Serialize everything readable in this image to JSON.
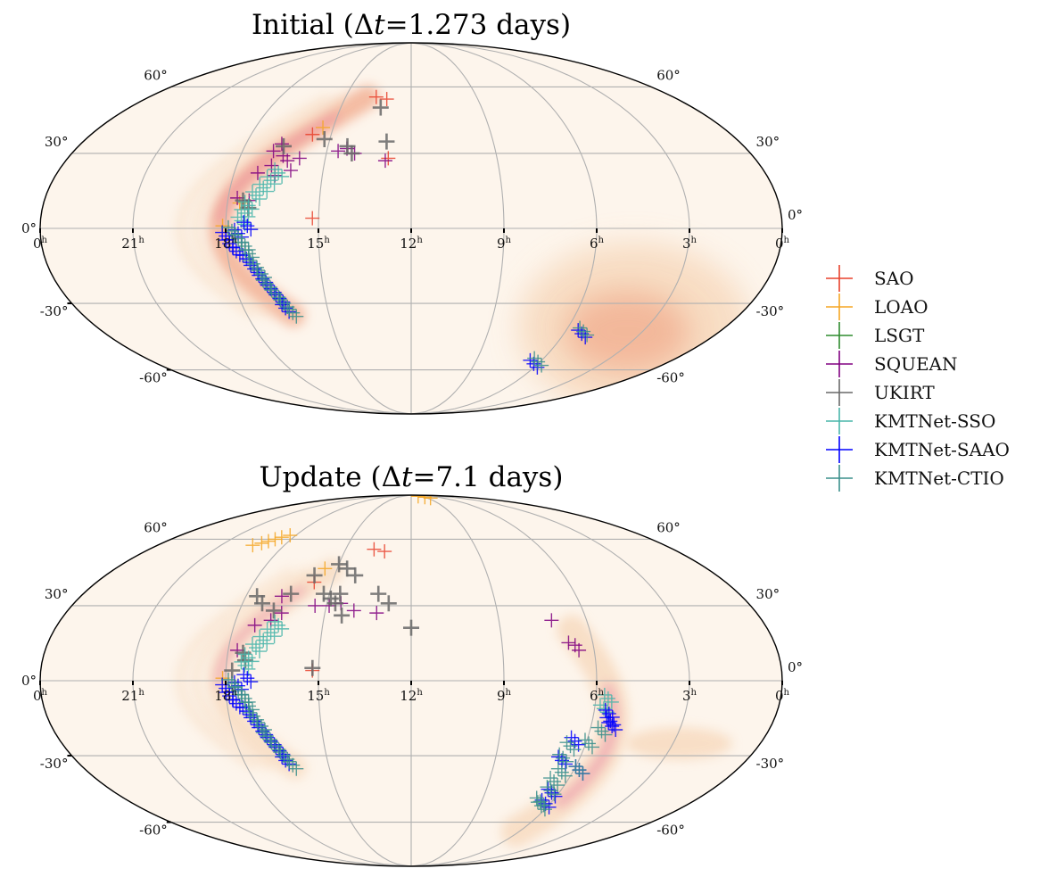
{
  "chart_data": [
    {
      "type": "scatter",
      "projection": "mollweide",
      "title": "Initial (Δt=1.273 days)",
      "title_parts": {
        "prefix": "Initial (",
        "delta": "Δ",
        "t": "t",
        "suffix": "=1.273 days)"
      },
      "x_tick_labels": [
        "0",
        "21",
        "18",
        "15",
        "12",
        "9",
        "6",
        "3",
        "0"
      ],
      "x_tick_ra_hours": [
        24,
        21,
        18,
        15,
        12,
        9,
        6,
        3,
        0
      ],
      "x_tick_unit": "h",
      "y_tick_labels": [
        "60°",
        "30°",
        "0°",
        "-30°",
        "-60°"
      ],
      "y_tick_dec_deg": [
        60,
        30,
        0,
        -30,
        -60
      ],
      "grid": true,
      "ra_direction": "increasing-left",
      "probability_regions": [
        {
          "desc": "northern arc",
          "ra_h": [
            12.5,
            18.2
          ],
          "dec_deg": [
            -35,
            55
          ],
          "intensity": "high"
        },
        {
          "desc": "southern blob",
          "ra_h": [
            1.5,
            6.5
          ],
          "dec_deg": [
            -65,
            -5
          ],
          "intensity": "medium"
        }
      ],
      "series": [
        {
          "name": "SAO",
          "color": "#e8412c",
          "points": [
            [
              13.6,
              55
            ],
            [
              13.1,
              54
            ],
            [
              15.7,
              38
            ],
            [
              15.2,
              4
            ],
            [
              12.8,
              28
            ]
          ]
        },
        {
          "name": "LOAO",
          "color": "#f5a623",
          "points": [
            [
              15.4,
              41
            ],
            [
              17.6,
              10
            ],
            [
              18.1,
              1
            ]
          ]
        },
        {
          "name": "LSGT",
          "color": "#2e8b2e",
          "points": []
        },
        {
          "name": "SQUEAN",
          "color": "#800080",
          "points": [
            [
              16.7,
              34
            ],
            [
              16.9,
              31
            ],
            [
              16.5,
              29
            ],
            [
              16.3,
              27
            ],
            [
              16.8,
              25
            ],
            [
              17.2,
              22
            ],
            [
              16.6,
              21
            ],
            [
              16.1,
              23
            ],
            [
              15.9,
              28
            ],
            [
              14.3,
              32
            ],
            [
              14.6,
              31
            ],
            [
              14.0,
              30
            ],
            [
              12.9,
              27
            ],
            [
              17.7,
              12
            ],
            [
              17.3,
              11
            ]
          ]
        },
        {
          "name": "UKIRT",
          "color": "#696969",
          "points": [
            [
              13.3,
              50
            ],
            [
              15.2,
              36
            ],
            [
              14.3,
              33
            ],
            [
              14.1,
              30
            ],
            [
              12.9,
              35
            ],
            [
              16.6,
              33
            ],
            [
              17.5,
              11
            ],
            [
              17.3,
              8
            ]
          ]
        },
        {
          "name": "KMTNet-SSO",
          "color": "#48b5aa",
          "points": [
            [
              16.5,
              22
            ],
            [
              16.7,
              19
            ],
            [
              16.9,
              16
            ],
            [
              17.1,
              13
            ],
            [
              17.3,
              9
            ],
            [
              17.4,
              6
            ],
            [
              17.5,
              3
            ]
          ]
        },
        {
          "name": "KMTNet-SAAO",
          "color": "#0000ff",
          "points": [
            [
              18.0,
              -3
            ],
            [
              17.9,
              -6
            ],
            [
              17.7,
              -9
            ],
            [
              17.3,
              1
            ],
            [
              17.6,
              -2
            ],
            [
              17.4,
              -12
            ],
            [
              17.2,
              -16
            ],
            [
              17.0,
              -20
            ],
            [
              16.8,
              -24
            ],
            [
              16.6,
              -28
            ],
            [
              16.5,
              -32
            ],
            [
              5.3,
              -43
            ],
            [
              6.2,
              -57
            ]
          ]
        },
        {
          "name": "KMTNet-CTIO",
          "color": "#3a8f8c",
          "points": [
            [
              17.8,
              -1
            ],
            [
              17.6,
              -4
            ],
            [
              17.4,
              -7
            ],
            [
              17.3,
              -10
            ],
            [
              17.2,
              -14
            ],
            [
              17.0,
              -18
            ],
            [
              16.9,
              -22
            ],
            [
              16.7,
              -26
            ],
            [
              16.5,
              -30
            ],
            [
              16.3,
              -34
            ],
            [
              5.3,
              -42
            ],
            [
              6.1,
              -56
            ]
          ]
        }
      ]
    },
    {
      "type": "scatter",
      "projection": "mollweide",
      "title": "Update (Δt=7.1 days)",
      "title_parts": {
        "prefix": "Update (",
        "delta": "Δ",
        "t": "t",
        "suffix": "=7.1 days)"
      },
      "x_tick_labels": [
        "0",
        "21",
        "18",
        "15",
        "12",
        "9",
        "6",
        "3",
        "0"
      ],
      "x_tick_ra_hours": [
        24,
        21,
        18,
        15,
        12,
        9,
        6,
        3,
        0
      ],
      "x_tick_unit": "h",
      "y_tick_labels": [
        "60°",
        "30°",
        "0°",
        "-30°",
        "-60°"
      ],
      "y_tick_dec_deg": [
        60,
        30,
        0,
        -30,
        -60
      ],
      "grid": true,
      "ra_direction": "increasing-left",
      "probability_regions": [
        {
          "desc": "northern arc",
          "ra_h": [
            14.0,
            18.2
          ],
          "dec_deg": [
            -35,
            45
          ],
          "intensity": "medium"
        },
        {
          "desc": "eastern arc",
          "ra_h": [
            4.5,
            7.0
          ],
          "dec_deg": [
            -65,
            20
          ],
          "intensity": "high"
        }
      ],
      "series": [
        {
          "name": "SAO",
          "color": "#e8412c",
          "points": [
            [
              13.7,
              55
            ],
            [
              13.2,
              54
            ],
            [
              15.7,
              40
            ],
            [
              15.2,
              4
            ]
          ]
        },
        {
          "name": "LOAO",
          "color": "#f5a623",
          "points": [
            [
              19.5,
              57
            ],
            [
              19.2,
              58
            ],
            [
              19.0,
              59
            ],
            [
              18.8,
              60
            ],
            [
              18.6,
              61
            ],
            [
              18.3,
              62
            ],
            [
              10.0,
              88
            ],
            [
              9.0,
              87
            ],
            [
              8.5,
              86
            ],
            [
              15.5,
              46
            ],
            [
              18.1,
              1
            ]
          ]
        },
        {
          "name": "LSGT",
          "color": "#2e8b2e",
          "points": []
        },
        {
          "name": "SQUEAN",
          "color": "#800080",
          "points": [
            [
              16.7,
              34
            ],
            [
              16.5,
              27
            ],
            [
              16.8,
              24
            ],
            [
              17.3,
              22
            ],
            [
              15.4,
              30
            ],
            [
              14.9,
              30
            ],
            [
              14.5,
              31
            ],
            [
              14.0,
              28
            ],
            [
              13.2,
              27
            ],
            [
              7.2,
              24
            ],
            [
              6.8,
              15
            ],
            [
              6.6,
              14
            ],
            [
              6.5,
              12
            ],
            [
              17.7,
              12
            ]
          ]
        },
        {
          "name": "UKIRT",
          "color": "#696969",
          "points": [
            [
              15.0,
              48
            ],
            [
              14.6,
              46
            ],
            [
              15.8,
              43
            ],
            [
              14.2,
              43
            ],
            [
              17.6,
              34
            ],
            [
              17.3,
              31
            ],
            [
              16.4,
              35
            ],
            [
              16.8,
              28
            ],
            [
              15.2,
              35
            ],
            [
              14.6,
              35
            ],
            [
              14.9,
              33
            ],
            [
              14.7,
              31
            ],
            [
              14.4,
              26
            ],
            [
              13.2,
              35
            ],
            [
              12.8,
              31
            ],
            [
              12.0,
              21
            ],
            [
              17.5,
              11
            ],
            [
              17.4,
              8
            ],
            [
              17.8,
              4
            ],
            [
              15.2,
              5
            ]
          ]
        },
        {
          "name": "KMTNet-SSO",
          "color": "#48b5aa",
          "points": [
            [
              16.5,
              22
            ],
            [
              16.7,
              19
            ],
            [
              16.9,
              16
            ],
            [
              17.1,
              13
            ],
            [
              17.3,
              9
            ],
            [
              17.4,
              6
            ],
            [
              5.6,
              -7
            ],
            [
              5.7,
              -11
            ]
          ]
        },
        {
          "name": "KMTNet-SAAO",
          "color": "#0000ff",
          "points": [
            [
              18.0,
              -3
            ],
            [
              17.9,
              -6
            ],
            [
              17.7,
              -9
            ],
            [
              17.3,
              1
            ],
            [
              17.6,
              -2
            ],
            [
              17.4,
              -12
            ],
            [
              17.2,
              -16
            ],
            [
              17.0,
              -20
            ],
            [
              16.8,
              -24
            ],
            [
              16.6,
              -28
            ],
            [
              16.5,
              -32
            ],
            [
              5.4,
              -16
            ],
            [
              5.3,
              -18
            ],
            [
              5.5,
              -13
            ],
            [
              6.4,
              -24
            ],
            [
              6.6,
              -32
            ],
            [
              5.8,
              -36
            ],
            [
              6.3,
              -46
            ],
            [
              6.2,
              -51
            ]
          ]
        },
        {
          "name": "KMTNet-CTIO",
          "color": "#3a8f8c",
          "points": [
            [
              17.8,
              -1
            ],
            [
              17.6,
              -4
            ],
            [
              17.4,
              -7
            ],
            [
              17.3,
              -10
            ],
            [
              17.2,
              -14
            ],
            [
              17.0,
              -18
            ],
            [
              16.9,
              -22
            ],
            [
              16.7,
              -26
            ],
            [
              16.5,
              -30
            ],
            [
              16.3,
              -34
            ],
            [
              5.6,
              -20
            ],
            [
              5.9,
              -25
            ],
            [
              6.5,
              -26
            ],
            [
              6.6,
              -31
            ],
            [
              6.4,
              -37
            ],
            [
              5.8,
              -36
            ],
            [
              6.5,
              -41
            ],
            [
              6.4,
              -45
            ],
            [
              6.5,
              -50
            ],
            [
              6.3,
              -52
            ]
          ]
        }
      ]
    }
  ],
  "legend": {
    "position": "right",
    "items": [
      {
        "label": "SAO",
        "color": "#e8412c"
      },
      {
        "label": "LOAO",
        "color": "#f5a623"
      },
      {
        "label": "LSGT",
        "color": "#2e8b2e"
      },
      {
        "label": "SQUEAN",
        "color": "#800080"
      },
      {
        "label": "UKIRT",
        "color": "#696969"
      },
      {
        "label": "KMTNet-SSO",
        "color": "#48b5aa"
      },
      {
        "label": "KMTNet-SAAO",
        "color": "#0000ff"
      },
      {
        "label": "KMTNet-CTIO",
        "color": "#3a8f8c"
      }
    ]
  },
  "colors": {
    "map_background": "#fdf5ec",
    "prob_low": "#f7d9bd",
    "prob_mid": "#f1a98a",
    "prob_high": "#e87ba0",
    "grid": "#b0b0b0",
    "outline": "#000000"
  }
}
